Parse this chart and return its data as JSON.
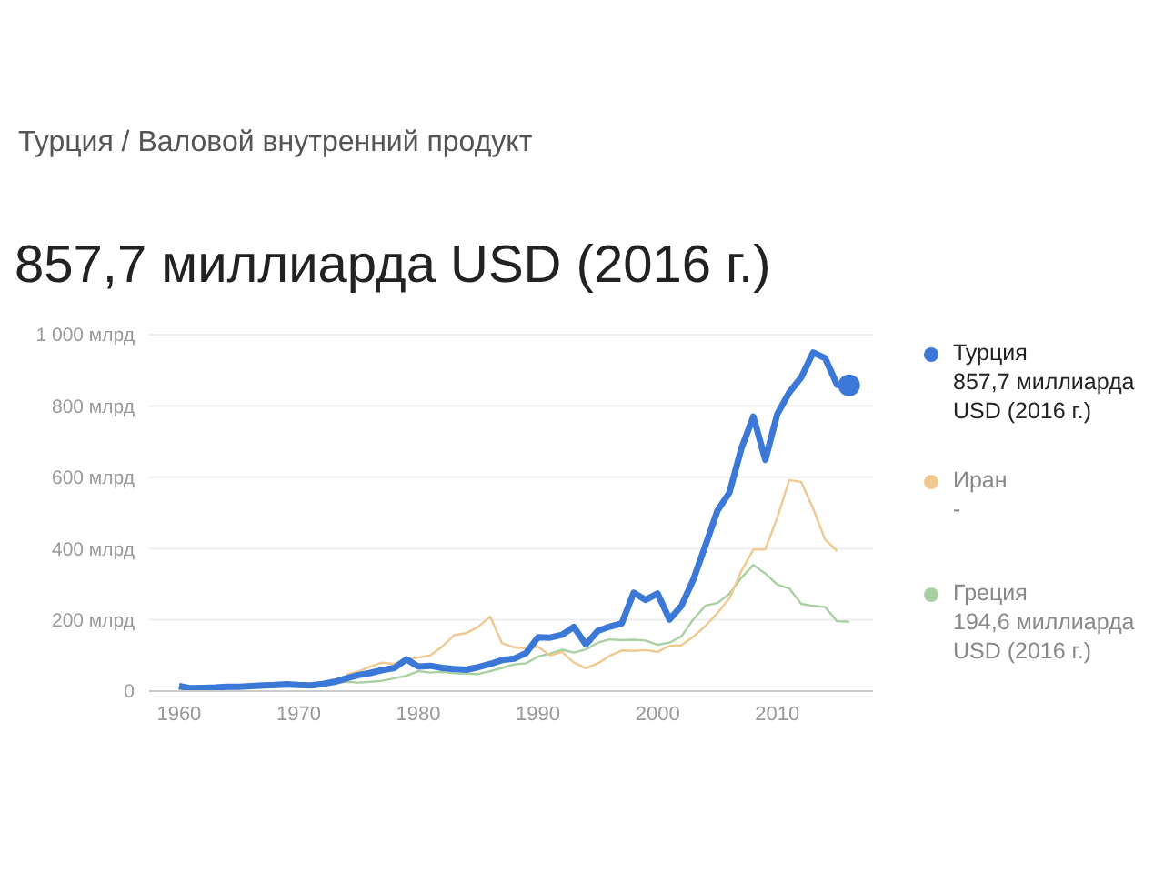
{
  "chart_data": {
    "type": "line",
    "subtitle": "Турция / Валовой внутренний продукт",
    "title": "857,7 миллиарда USD (2016 г.)",
    "x": [
      1960,
      1961,
      1962,
      1963,
      1964,
      1965,
      1966,
      1967,
      1968,
      1969,
      1970,
      1971,
      1972,
      1973,
      1974,
      1975,
      1976,
      1977,
      1978,
      1979,
      1980,
      1981,
      1982,
      1983,
      1984,
      1985,
      1986,
      1987,
      1988,
      1989,
      1990,
      1991,
      1992,
      1993,
      1994,
      1995,
      1996,
      1997,
      1998,
      1999,
      2000,
      2001,
      2002,
      2003,
      2004,
      2005,
      2006,
      2007,
      2008,
      2009,
      2010,
      2011,
      2012,
      2013,
      2014,
      2015,
      2016
    ],
    "series": [
      {
        "name": "Турция",
        "color": "#3c78d8",
        "values": [
          14,
          8,
          9,
          10,
          12,
          12,
          14,
          16,
          17,
          19,
          17,
          16,
          20,
          26,
          36,
          45,
          51,
          59,
          65,
          89,
          69,
          71,
          65,
          62,
          60,
          67,
          76,
          87,
          91,
          107,
          151,
          150,
          158,
          180,
          131,
          169,
          181,
          190,
          276,
          256,
          274,
          201,
          240,
          314,
          409,
          506,
          557,
          681,
          770,
          649,
          777,
          838,
          880,
          950,
          934,
          859,
          857.7
        ]
      },
      {
        "name": "Иран",
        "color": "#f0c890",
        "values": [
          null,
          null,
          null,
          null,
          null,
          null,
          null,
          null,
          null,
          null,
          null,
          null,
          null,
          null,
          47,
          55,
          69,
          80,
          76,
          90,
          94,
          100,
          125,
          157,
          163,
          180,
          209,
          134,
          123,
          120,
          124,
          100,
          110,
          80,
          64,
          78,
          99,
          114,
          113,
          115,
          110,
          127,
          129,
          153,
          183,
          219,
          260,
          337,
          397,
          398,
          487,
          592,
          587,
          512,
          425,
          393,
          null
        ]
      },
      {
        "name": "Греция",
        "color": "#a8d0a0",
        "values": [
          4,
          5,
          5,
          6,
          7,
          8,
          9,
          10,
          11,
          12,
          13,
          15,
          18,
          23,
          26,
          24,
          26,
          29,
          36,
          43,
          56,
          52,
          54,
          50,
          49,
          48,
          56,
          65,
          75,
          78,
          97,
          105,
          116,
          108,
          117,
          136,
          145,
          143,
          144,
          142,
          130,
          136,
          154,
          202,
          240,
          247,
          273,
          318,
          354,
          330,
          299,
          288,
          245,
          239,
          236,
          196,
          194.6
        ]
      }
    ],
    "annotations": [
      "857,7 миллиарда USD (2016 г.)",
      "-",
      "194,6 миллиарда USD (2016 г.)"
    ],
    "xlim": [
      1957.5,
      2018
    ],
    "xticks": [
      1960,
      1970,
      1980,
      1990,
      2000,
      2010
    ],
    "ylim": [
      0,
      1000
    ],
    "yticks": [
      0,
      {
        "value": 200,
        "label": "200 млрд"
      },
      {
        "value": 400,
        "label": "400 млрд"
      },
      {
        "value": 600,
        "label": "600 млрд"
      },
      {
        "value": 800,
        "label": "800 млрд"
      },
      {
        "value": 1000,
        "label": "1 000 млрд"
      }
    ],
    "grid": "y",
    "legend": "right"
  }
}
